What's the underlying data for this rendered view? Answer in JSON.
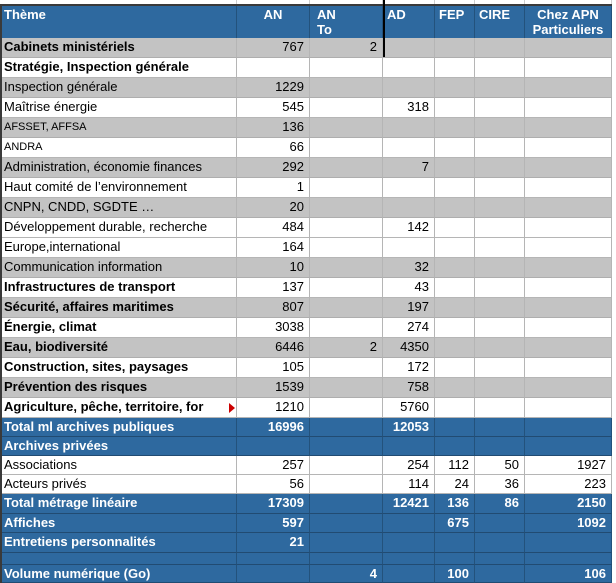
{
  "columns": [
    {
      "key": "theme",
      "label": "Thème"
    },
    {
      "key": "an",
      "label": "AN"
    },
    {
      "key": "anto",
      "label": "AN\nTo"
    },
    {
      "key": "ad",
      "label": "AD"
    },
    {
      "key": "fep",
      "label": "FEP"
    },
    {
      "key": "cire",
      "label": "CIRE"
    },
    {
      "key": "apn",
      "label": "Chez APN\nParticuliers"
    }
  ],
  "rows": [
    {
      "theme": "Cabinets ministériels",
      "an": "767",
      "anto": "2",
      "bg": "gray",
      "bold": true
    },
    {
      "theme": "Stratégie, Inspection générale",
      "bg": "white",
      "bold": true
    },
    {
      "theme": "Inspection générale",
      "an": "1229",
      "bg": "gray"
    },
    {
      "theme": "Maîtrise énergie",
      "an": "545",
      "ad": "318",
      "bg": "white"
    },
    {
      "theme": "AFSSET, AFFSA",
      "an": "136",
      "bg": "gray",
      "small": true
    },
    {
      "theme": "ANDRA",
      "an": "66",
      "bg": "white",
      "small": true
    },
    {
      "theme": "Administration, économie finances",
      "an": "292",
      "ad": "7",
      "bg": "gray"
    },
    {
      "theme": "Haut comité de l’environnement",
      "an": "1",
      "bg": "white"
    },
    {
      "theme": "CNPN, CNDD, SGDTE …",
      "an": "20",
      "bg": "gray"
    },
    {
      "theme": "Développement durable, recherche",
      "an": "484",
      "ad": "142",
      "bg": "white"
    },
    {
      "theme": "Europe,international",
      "an": "164",
      "bg": "white"
    },
    {
      "theme": "Communication information",
      "an": "10",
      "ad": "32",
      "bg": "gray"
    },
    {
      "theme": "Infrastructures de transport",
      "an": "137",
      "ad": "43",
      "bg": "white",
      "bold": true
    },
    {
      "theme": "Sécurité, affaires maritimes",
      "an": "807",
      "ad": "197",
      "bg": "gray",
      "bold": true
    },
    {
      "theme": "Énergie, climat",
      "an": "3038",
      "ad": "274",
      "bg": "white",
      "bold": true
    },
    {
      "theme": "Eau, biodiversité",
      "an": "6446",
      "anto": "2",
      "ad": "4350",
      "bg": "gray",
      "bold": true
    },
    {
      "theme": "Construction, sites, paysages",
      "an": "105",
      "ad": "172",
      "bg": "white",
      "bold": true
    },
    {
      "theme": "Prévention des risques",
      "an": "1539",
      "ad": "758",
      "bg": "gray",
      "bold": true
    },
    {
      "theme": "Agriculture, pêche, territoire, for",
      "an": "1210",
      "ad": "5760",
      "bg": "white",
      "bold": true,
      "overflow": true
    },
    {
      "theme": "Total ml archives publiques",
      "an": "16996",
      "ad": "12053",
      "bg": "blue",
      "bold": true
    },
    {
      "theme": "Archives privées",
      "bg": "blue",
      "bold": true
    },
    {
      "theme": "Associations",
      "an": "257",
      "ad": "254",
      "fep": "112",
      "cire": "50",
      "apn": "1927",
      "bg": "white"
    },
    {
      "theme": "Acteurs privés",
      "an": "56",
      "ad": "114",
      "fep": "24",
      "cire": "36",
      "apn": "223",
      "bg": "white"
    },
    {
      "theme": "Total métrage linéaire",
      "an": "17309",
      "ad": "12421",
      "fep": "136",
      "cire": "86",
      "apn": "2150",
      "bg": "blue",
      "bold": true
    },
    {
      "theme": "Affiches",
      "an": "597",
      "fep": "675",
      "apn": "1092",
      "bg": "blue",
      "bold": true
    },
    {
      "theme": "Entretiens personnalités",
      "an": "21",
      "bg": "blue",
      "bold": true
    },
    {
      "theme": "",
      "bg": "blue"
    },
    {
      "theme": "Volume numérique (Go)",
      "anto": "4",
      "fep": "100",
      "apn": "106",
      "bg": "blue",
      "bold": true
    }
  ],
  "colors": {
    "header_blue": "#2e699f",
    "band_gray": "#c3c3c3",
    "overflow_red": "#cc0000"
  }
}
